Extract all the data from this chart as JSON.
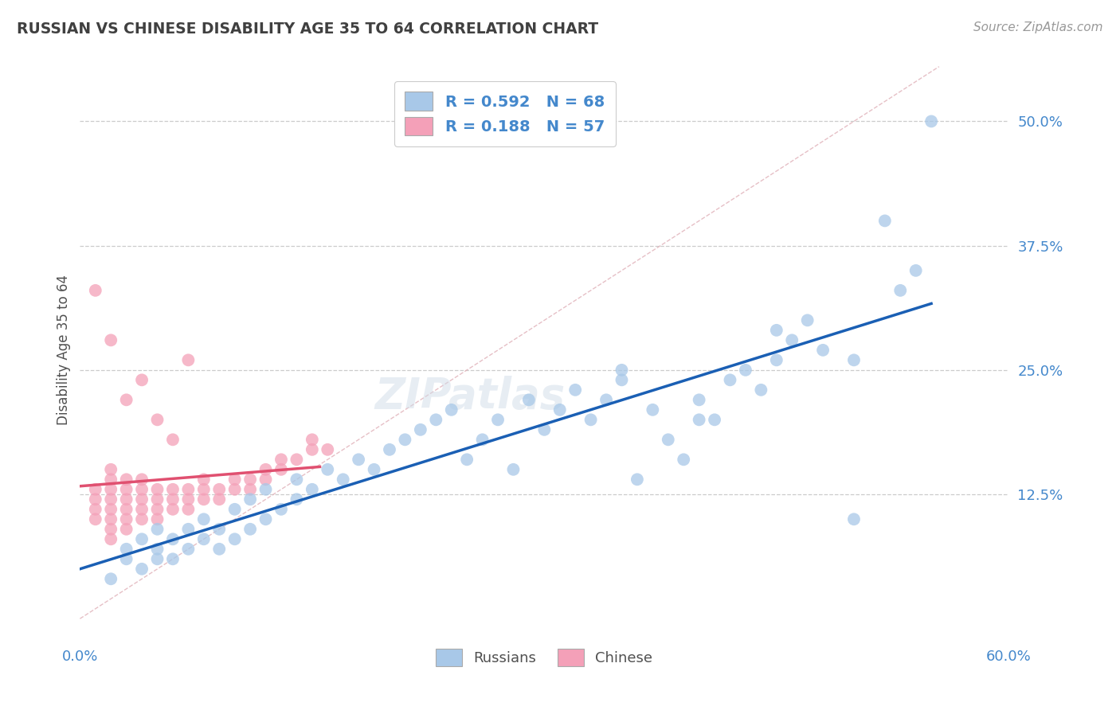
{
  "title": "RUSSIAN VS CHINESE DISABILITY AGE 35 TO 64 CORRELATION CHART",
  "source_text": "Source: ZipAtlas.com",
  "ylabel": "Disability Age 35 to 64",
  "xlim": [
    0.0,
    0.6
  ],
  "ylim": [
    -0.02,
    0.56
  ],
  "xtick_labels": [
    "0.0%",
    "60.0%"
  ],
  "xtick_vals": [
    0.0,
    0.6
  ],
  "ytick_labels_right": [
    "12.5%",
    "25.0%",
    "37.5%",
    "50.0%"
  ],
  "ytick_vals_right": [
    0.125,
    0.25,
    0.375,
    0.5
  ],
  "legend_R_russian": "0.592",
  "legend_N_russian": "68",
  "legend_R_chinese": "0.188",
  "legend_N_chinese": "57",
  "russian_color": "#a8c8e8",
  "chinese_color": "#f4a0b8",
  "russian_line_color": "#1a5fb4",
  "chinese_line_color": "#e05070",
  "title_color": "#404040",
  "axis_label_color": "#505050",
  "tick_color": "#4488cc",
  "legend_text_color": "#4488cc",
  "background_color": "#ffffff",
  "grid_color": "#cccccc",
  "ref_line_color": "#e0b0b8",
  "russian_x": [
    0.02,
    0.03,
    0.03,
    0.04,
    0.04,
    0.05,
    0.05,
    0.05,
    0.06,
    0.06,
    0.07,
    0.07,
    0.08,
    0.08,
    0.09,
    0.09,
    0.1,
    0.1,
    0.11,
    0.11,
    0.12,
    0.12,
    0.13,
    0.14,
    0.14,
    0.15,
    0.16,
    0.17,
    0.18,
    0.19,
    0.2,
    0.21,
    0.22,
    0.23,
    0.24,
    0.25,
    0.26,
    0.27,
    0.28,
    0.29,
    0.3,
    0.31,
    0.32,
    0.33,
    0.34,
    0.35,
    0.36,
    0.37,
    0.38,
    0.39,
    0.4,
    0.41,
    0.42,
    0.43,
    0.44,
    0.45,
    0.46,
    0.47,
    0.48,
    0.5,
    0.52,
    0.53,
    0.54,
    0.55,
    0.45,
    0.5,
    0.35,
    0.4
  ],
  "russian_y": [
    0.04,
    0.06,
    0.07,
    0.05,
    0.08,
    0.06,
    0.07,
    0.09,
    0.06,
    0.08,
    0.07,
    0.09,
    0.08,
    0.1,
    0.07,
    0.09,
    0.08,
    0.11,
    0.09,
    0.12,
    0.1,
    0.13,
    0.11,
    0.12,
    0.14,
    0.13,
    0.15,
    0.14,
    0.16,
    0.15,
    0.17,
    0.18,
    0.19,
    0.2,
    0.21,
    0.16,
    0.18,
    0.2,
    0.15,
    0.22,
    0.19,
    0.21,
    0.23,
    0.2,
    0.22,
    0.24,
    0.14,
    0.21,
    0.18,
    0.16,
    0.22,
    0.2,
    0.24,
    0.25,
    0.23,
    0.26,
    0.28,
    0.3,
    0.27,
    0.1,
    0.4,
    0.33,
    0.35,
    0.5,
    0.29,
    0.26,
    0.25,
    0.2
  ],
  "chinese_x": [
    0.01,
    0.01,
    0.01,
    0.01,
    0.02,
    0.02,
    0.02,
    0.02,
    0.02,
    0.02,
    0.02,
    0.02,
    0.03,
    0.03,
    0.03,
    0.03,
    0.03,
    0.03,
    0.04,
    0.04,
    0.04,
    0.04,
    0.04,
    0.05,
    0.05,
    0.05,
    0.05,
    0.06,
    0.06,
    0.06,
    0.07,
    0.07,
    0.07,
    0.08,
    0.08,
    0.08,
    0.09,
    0.09,
    0.1,
    0.1,
    0.11,
    0.11,
    0.12,
    0.12,
    0.13,
    0.13,
    0.14,
    0.15,
    0.15,
    0.16,
    0.01,
    0.02,
    0.03,
    0.04,
    0.05,
    0.06,
    0.07
  ],
  "chinese_y": [
    0.1,
    0.11,
    0.12,
    0.13,
    0.08,
    0.09,
    0.1,
    0.11,
    0.12,
    0.13,
    0.14,
    0.15,
    0.09,
    0.1,
    0.11,
    0.12,
    0.13,
    0.14,
    0.1,
    0.11,
    0.12,
    0.13,
    0.14,
    0.1,
    0.11,
    0.12,
    0.13,
    0.11,
    0.12,
    0.13,
    0.11,
    0.12,
    0.13,
    0.12,
    0.13,
    0.14,
    0.12,
    0.13,
    0.13,
    0.14,
    0.13,
    0.14,
    0.14,
    0.15,
    0.15,
    0.16,
    0.16,
    0.17,
    0.18,
    0.17,
    0.33,
    0.28,
    0.22,
    0.24,
    0.2,
    0.18,
    0.26
  ],
  "russian_trend": [
    0.05,
    0.335
  ],
  "russian_trend_x": [
    0.0,
    0.55
  ],
  "chinese_trend": [
    0.12,
    0.19
  ],
  "chinese_trend_x": [
    0.0,
    0.155
  ],
  "ref_line_x": [
    0.0,
    0.555
  ],
  "ref_line_y": [
    0.0,
    0.555
  ]
}
